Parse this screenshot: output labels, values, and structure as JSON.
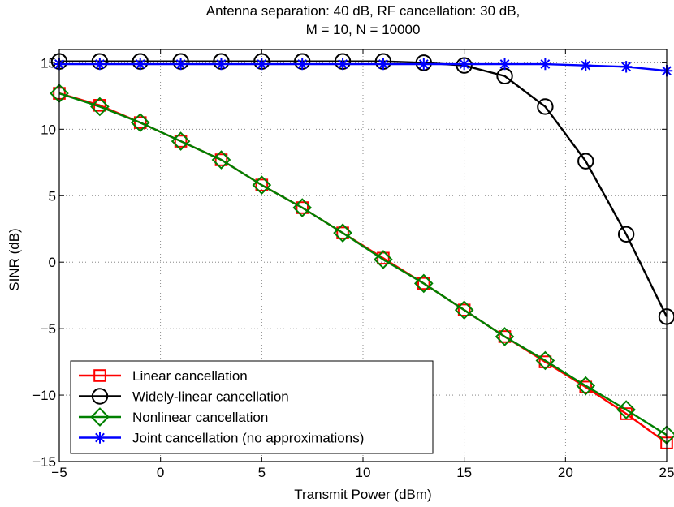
{
  "chart_data": {
    "type": "line",
    "title": "Antenna separation: 40 dB, RF cancellation: 30 dB,",
    "subtitle": "M = 10, N = 10000",
    "xlabel": "Transmit Power (dBm)",
    "ylabel": "SINR (dB)",
    "xlim": [
      -5,
      25
    ],
    "ylim": [
      -15,
      16
    ],
    "xticks": [
      -5,
      0,
      5,
      10,
      15,
      20,
      25
    ],
    "yticks": [
      -15,
      -10,
      -5,
      0,
      5,
      10,
      15
    ],
    "xtick_labels": [
      "−5",
      "0",
      "5",
      "10",
      "15",
      "20",
      "25"
    ],
    "ytick_labels": [
      "−15",
      "−10",
      "−5",
      "0",
      "5",
      "10",
      "15"
    ],
    "grid": true,
    "legend_position": "bottom-left",
    "x": [
      -5,
      -3,
      -1,
      1,
      3,
      5,
      7,
      9,
      11,
      13,
      15,
      17,
      19,
      21,
      23,
      25
    ],
    "series": [
      {
        "name": "Linear cancellation",
        "color": "#ff0000",
        "marker": "square",
        "values": [
          12.7,
          11.8,
          10.5,
          9.1,
          7.7,
          5.8,
          4.1,
          2.2,
          0.3,
          -1.6,
          -3.6,
          -5.6,
          -7.5,
          -9.4,
          -11.4,
          -13.6
        ]
      },
      {
        "name": "Widely-linear cancellation",
        "color": "#000000",
        "marker": "circle",
        "values": [
          15.1,
          15.1,
          15.1,
          15.1,
          15.1,
          15.1,
          15.1,
          15.1,
          15.1,
          15.0,
          14.8,
          14.0,
          11.7,
          7.6,
          2.1,
          -4.1
        ]
      },
      {
        "name": "Nonlinear cancellation",
        "color": "#008000",
        "marker": "diamond",
        "values": [
          12.7,
          11.7,
          10.5,
          9.1,
          7.7,
          5.8,
          4.1,
          2.2,
          0.2,
          -1.6,
          -3.6,
          -5.6,
          -7.4,
          -9.3,
          -11.1,
          -13.0
        ]
      },
      {
        "name": "Joint cancellation (no approximations)",
        "color": "#0000ff",
        "marker": "asterisk",
        "values": [
          14.9,
          14.9,
          14.9,
          14.9,
          14.9,
          14.9,
          14.9,
          14.9,
          14.9,
          14.9,
          14.9,
          14.9,
          14.9,
          14.8,
          14.7,
          14.4
        ]
      }
    ]
  }
}
